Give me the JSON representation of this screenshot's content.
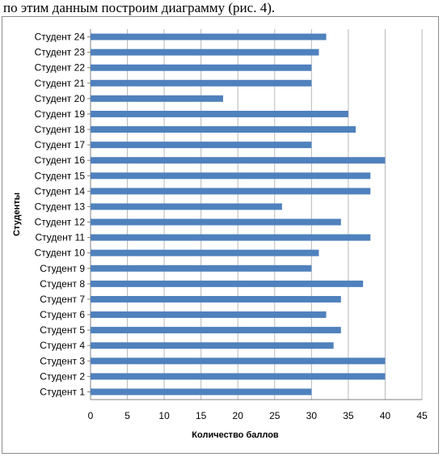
{
  "caption": "по этим данным построим диаграмму (рис. 4).",
  "chart_data": {
    "type": "bar",
    "orientation": "horizontal",
    "title": "",
    "xlabel": "Количество баллов",
    "ylabel": "Студенты",
    "xlim": [
      0,
      45
    ],
    "x_ticks": [
      0,
      5,
      10,
      15,
      20,
      25,
      30,
      35,
      40,
      45
    ],
    "grid": "vertical",
    "legend": "none",
    "bar_color": "#4f81bd",
    "categories": [
      "Студент 1",
      "Студент 2",
      "Студент 3",
      "Студент 4",
      "Студент 5",
      "Студент 6",
      "Студент 7",
      "Студент 8",
      "Студент 9",
      "Студент 10",
      "Студент 11",
      "Студент 12",
      "Студент 13",
      "Студент 14",
      "Студент 15",
      "Студент 16",
      "Студент 17",
      "Студент 18",
      "Студент 19",
      "Студент 20",
      "Студент 21",
      "Студент 22",
      "Студент 23",
      "Студент 24"
    ],
    "values": [
      30,
      40,
      40,
      33,
      34,
      32,
      34,
      37,
      30,
      31,
      38,
      34,
      26,
      38,
      38,
      40,
      30,
      36,
      35,
      18,
      30,
      30,
      31,
      32
    ]
  }
}
